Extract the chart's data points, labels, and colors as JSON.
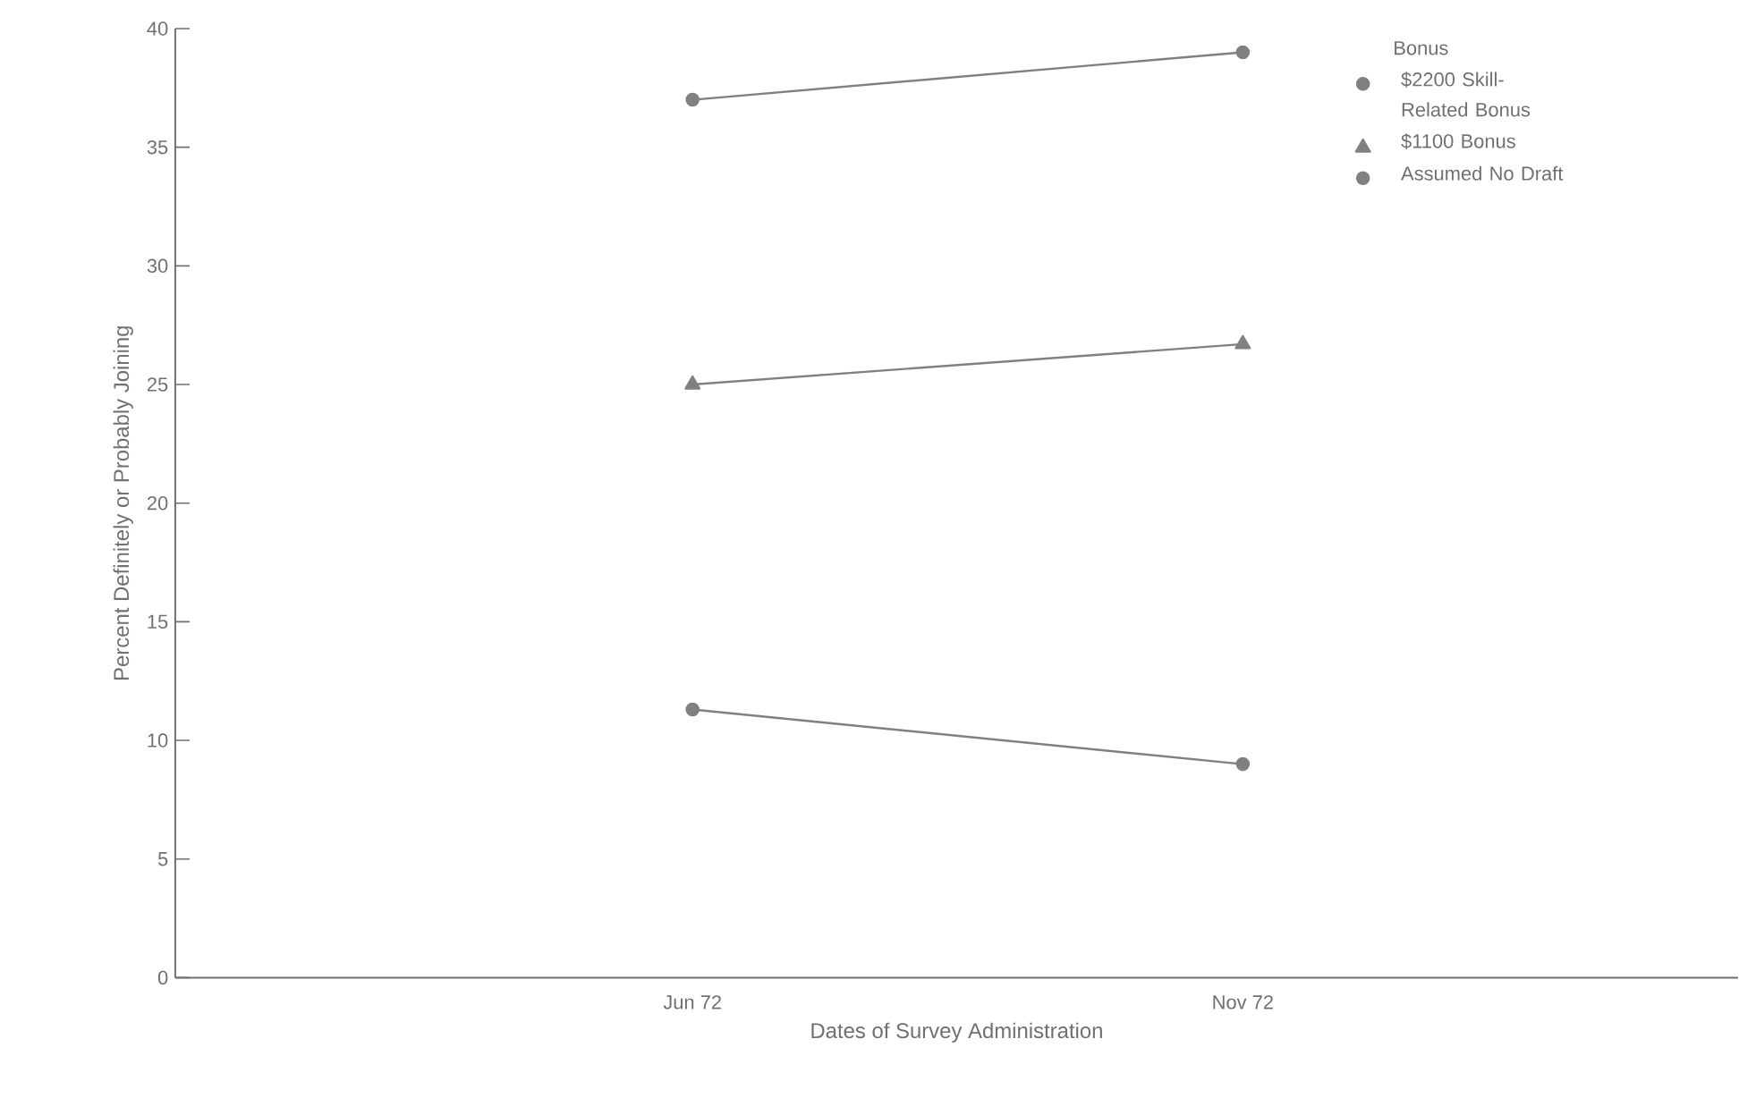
{
  "chart_data": {
    "type": "line",
    "xlabel": "Dates of Survey Administration",
    "ylabel": "Percent Definitely or Probably Joining",
    "legend_title": "Bonus",
    "categories": [
      "Jun 72",
      "Nov 72"
    ],
    "series": [
      {
        "name": "$2200 Skill-Related Bonus",
        "color": "#808080",
        "marker": "circle",
        "values": [
          37,
          39
        ]
      },
      {
        "name": "$1100 Bonus",
        "color": "#808080",
        "marker": "triangle",
        "values": [
          25,
          26.7
        ]
      },
      {
        "name": "Assumed No Draft",
        "color": "#808080",
        "marker": "circle",
        "values": [
          11.3,
          9
        ]
      }
    ],
    "ylim": [
      0,
      40
    ],
    "yticks": [
      0,
      5,
      10,
      15,
      20,
      25,
      30,
      35,
      40
    ],
    "grid": false,
    "legend": "top right"
  }
}
